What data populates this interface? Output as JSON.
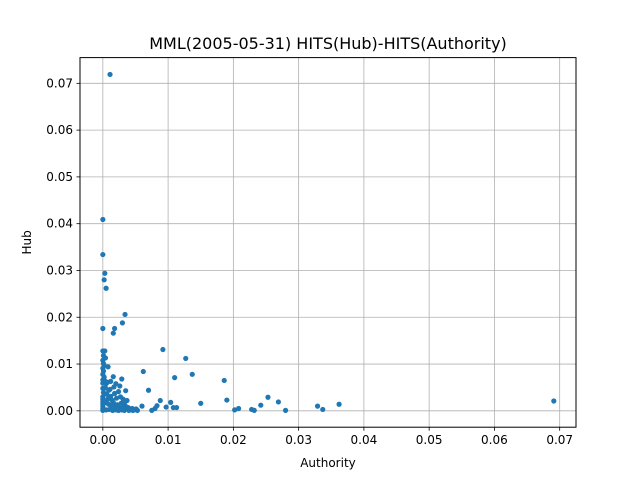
{
  "chart_data": {
    "type": "scatter",
    "title": "MML(2005-05-31) HITS(Hub)-HITS(Authority)",
    "xlabel": "Authority",
    "ylabel": "Hub",
    "xlim": [
      -0.0035,
      0.0725
    ],
    "ylim": [
      -0.0035,
      0.0755
    ],
    "xticks": [
      0.0,
      0.01,
      0.02,
      0.03,
      0.04,
      0.05,
      0.06,
      0.07
    ],
    "xtick_labels": [
      "0.00",
      "0.01",
      "0.02",
      "0.03",
      "0.04",
      "0.05",
      "0.06",
      "0.07"
    ],
    "yticks": [
      0.0,
      0.01,
      0.02,
      0.03,
      0.04,
      0.05,
      0.06,
      0.07
    ],
    "ytick_labels": [
      "0.00",
      "0.01",
      "0.02",
      "0.03",
      "0.04",
      "0.05",
      "0.06",
      "0.07"
    ],
    "grid": true,
    "color": "#1f77b4",
    "points": [
      [
        0.0011,
        0.0719
      ],
      [
        0.0,
        0.0409
      ],
      [
        0.0,
        0.0334
      ],
      [
        0.0003,
        0.0294
      ],
      [
        0.0002,
        0.028
      ],
      [
        0.0005,
        0.0262
      ],
      [
        0.0034,
        0.0206
      ],
      [
        0.003,
        0.0188
      ],
      [
        0.0018,
        0.0176
      ],
      [
        0.0016,
        0.0166
      ],
      [
        0.0,
        0.0176
      ],
      [
        0.0,
        0.0128
      ],
      [
        0.0003,
        0.0128
      ],
      [
        0.0001,
        0.0118
      ],
      [
        0.0004,
        0.0113
      ],
      [
        0.0,
        0.0108
      ],
      [
        0.0001,
        0.0101
      ],
      [
        0.0002,
        0.0097
      ],
      [
        0.0008,
        0.0094
      ],
      [
        0.0,
        0.0091
      ],
      [
        0.0001,
        0.0085
      ],
      [
        0.0,
        0.0078
      ],
      [
        0.0002,
        0.0072
      ],
      [
        0.0,
        0.0066
      ],
      [
        0.0003,
        0.0064
      ],
      [
        0.0,
        0.0059
      ],
      [
        0.0005,
        0.0058
      ],
      [
        0.0007,
        0.0061
      ],
      [
        0.0012,
        0.0063
      ],
      [
        0.0016,
        0.0073
      ],
      [
        0.002,
        0.0058
      ],
      [
        0.0026,
        0.0053
      ],
      [
        0.0029,
        0.0068
      ],
      [
        0.0035,
        0.0043
      ],
      [
        0.0024,
        0.0041
      ],
      [
        0.0018,
        0.0037
      ],
      [
        0.0009,
        0.0044
      ],
      [
        0.0004,
        0.0049
      ],
      [
        0.0,
        0.0048
      ],
      [
        0.0001,
        0.0039
      ],
      [
        0.0006,
        0.0036
      ],
      [
        0.0012,
        0.0031
      ],
      [
        0.0021,
        0.0027
      ],
      [
        0.0031,
        0.0025
      ],
      [
        0.0037,
        0.0022
      ],
      [
        0.0,
        0.003
      ],
      [
        0.0,
        0.0025
      ],
      [
        0.0,
        0.002
      ],
      [
        0.0,
        0.0015
      ],
      [
        0.0,
        0.001
      ],
      [
        0.0,
        0.0005
      ],
      [
        0.0,
        0.0001
      ],
      [
        0.0003,
        0.0021
      ],
      [
        0.0006,
        0.0017
      ],
      [
        0.0009,
        0.0014
      ],
      [
        0.0013,
        0.0011
      ],
      [
        0.0016,
        0.0018
      ],
      [
        0.0019,
        0.0009
      ],
      [
        0.0022,
        0.0013
      ],
      [
        0.0025,
        0.0006
      ],
      [
        0.0028,
        0.0016
      ],
      [
        0.0031,
        0.0008
      ],
      [
        0.0034,
        0.0012
      ],
      [
        0.0036,
        0.0004
      ],
      [
        0.0039,
        0.0007
      ],
      [
        0.0042,
        0.0003
      ],
      [
        0.0045,
        0.0005
      ],
      [
        0.0048,
        0.0002
      ],
      [
        0.0051,
        0.0004
      ],
      [
        0.0005,
        0.0002
      ],
      [
        0.001,
        0.0003
      ],
      [
        0.0015,
        0.0001
      ],
      [
        0.002,
        0.0002
      ],
      [
        0.0024,
        0.0001
      ],
      [
        0.0029,
        0.0002
      ],
      [
        0.0033,
        0.0001
      ],
      [
        0.004,
        0.0001
      ],
      [
        0.0046,
        0.0001
      ],
      [
        0.0053,
        0.0001
      ],
      [
        0.0008,
        0.0026
      ],
      [
        0.0014,
        0.0023
      ],
      [
        0.0027,
        0.003
      ],
      [
        0.0032,
        0.0019
      ],
      [
        0.0011,
        0.0046
      ],
      [
        0.0017,
        0.0051
      ],
      [
        0.0062,
        0.0084
      ],
      [
        0.007,
        0.0044
      ],
      [
        0.006,
        0.001
      ],
      [
        0.008,
        0.0005
      ],
      [
        0.0083,
        0.0011
      ],
      [
        0.0088,
        0.0022
      ],
      [
        0.0092,
        0.0131
      ],
      [
        0.0097,
        0.0008
      ],
      [
        0.0104,
        0.0018
      ],
      [
        0.0108,
        0.0007
      ],
      [
        0.011,
        0.0071
      ],
      [
        0.0113,
        0.0007
      ],
      [
        0.0127,
        0.0112
      ],
      [
        0.0137,
        0.0078
      ],
      [
        0.015,
        0.0016
      ],
      [
        0.0186,
        0.0065
      ],
      [
        0.019,
        0.0023
      ],
      [
        0.0202,
        0.0002
      ],
      [
        0.0208,
        0.0005
      ],
      [
        0.0228,
        0.0003
      ],
      [
        0.0232,
        0.0001
      ],
      [
        0.0242,
        0.0012
      ],
      [
        0.0253,
        0.0029
      ],
      [
        0.0269,
        0.0019
      ],
      [
        0.028,
        0.0001
      ],
      [
        0.0329,
        0.001
      ],
      [
        0.0337,
        0.0003
      ],
      [
        0.0362,
        0.0014
      ],
      [
        0.0691,
        0.0021
      ],
      [
        0.0075,
        0.0001
      ]
    ]
  }
}
